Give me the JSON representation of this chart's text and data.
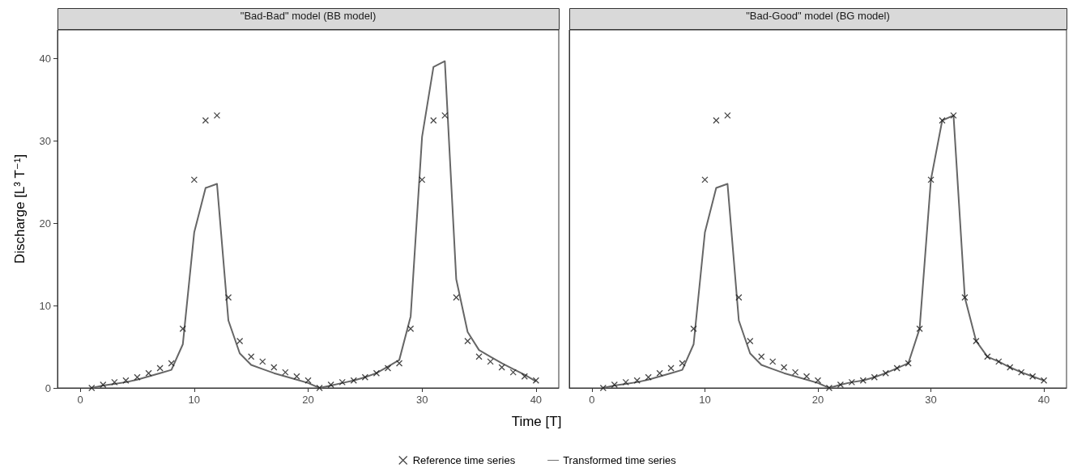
{
  "chart_data": [
    {
      "type": "line",
      "title": "\"Bad-Bad\" model (BB model)",
      "xlabel": "Time [T]",
      "ylabel": "Discharge [L³ T⁻¹]",
      "x": [
        1,
        2,
        3,
        4,
        5,
        6,
        7,
        8,
        9,
        10,
        11,
        12,
        13,
        14,
        15,
        16,
        17,
        18,
        19,
        20,
        21,
        22,
        23,
        24,
        25,
        26,
        27,
        28,
        29,
        30,
        31,
        32,
        33,
        34,
        35,
        36,
        37,
        38,
        39,
        40
      ],
      "series": [
        {
          "name": "Reference time series",
          "type": "scatter",
          "marker": "cross",
          "color": "#1a1a1a",
          "values": [
            0,
            0.4,
            0.7,
            0.9,
            1.3,
            1.8,
            2.4,
            3.0,
            7.2,
            25.3,
            32.5,
            33.1,
            11.0,
            5.7,
            3.8,
            3.2,
            2.5,
            1.9,
            1.4,
            0.9,
            0,
            0.4,
            0.7,
            0.9,
            1.3,
            1.8,
            2.4,
            3.0,
            7.2,
            25.3,
            32.5,
            33.1,
            11.0,
            5.7,
            3.8,
            3.2,
            2.5,
            1.9,
            1.4,
            0.9
          ]
        },
        {
          "name": "Transformed time series",
          "type": "line",
          "color": "#666666",
          "values": [
            0,
            0.3,
            0.5,
            0.7,
            1.0,
            1.4,
            1.8,
            2.2,
            5.3,
            18.9,
            24.3,
            24.8,
            8.2,
            4.2,
            2.8,
            2.3,
            1.8,
            1.4,
            1.0,
            0.6,
            0,
            0.3,
            0.6,
            0.9,
            1.3,
            1.8,
            2.6,
            3.4,
            8.7,
            30.5,
            39.0,
            39.7,
            13.2,
            6.8,
            4.6,
            3.8,
            3.0,
            2.3,
            1.6,
            0.8
          ]
        }
      ],
      "xlim": [
        -2,
        42
      ],
      "xticks": [
        0,
        10,
        20,
        30,
        40
      ],
      "ylim": [
        0,
        43.5
      ],
      "yticks": [
        0,
        10,
        20,
        30,
        40
      ],
      "grid": false,
      "legend": "bottom"
    },
    {
      "type": "line",
      "title": "\"Bad-Good\" model (BG model)",
      "x": [
        1,
        2,
        3,
        4,
        5,
        6,
        7,
        8,
        9,
        10,
        11,
        12,
        13,
        14,
        15,
        16,
        17,
        18,
        19,
        20,
        21,
        22,
        23,
        24,
        25,
        26,
        27,
        28,
        29,
        30,
        31,
        32,
        33,
        34,
        35,
        36,
        37,
        38,
        39,
        40
      ],
      "series": [
        {
          "type": "scatter",
          "marker": "cross",
          "color": "#1a1a1a",
          "values": [
            0,
            0.4,
            0.7,
            0.9,
            1.3,
            1.8,
            2.4,
            3.0,
            7.2,
            25.3,
            32.5,
            33.1,
            11.0,
            5.7,
            3.8,
            3.2,
            2.5,
            1.9,
            1.4,
            0.9,
            0,
            0.4,
            0.7,
            0.9,
            1.3,
            1.8,
            2.4,
            3.0,
            7.2,
            25.3,
            32.5,
            33.1,
            11.0,
            5.7,
            3.8,
            3.2,
            2.5,
            1.9,
            1.4,
            0.9
          ]
        },
        {
          "type": "line",
          "color": "#666666",
          "values": [
            0,
            0.3,
            0.5,
            0.7,
            1.0,
            1.4,
            1.8,
            2.2,
            5.3,
            18.9,
            24.3,
            24.8,
            8.2,
            4.2,
            2.8,
            2.3,
            1.8,
            1.4,
            1.0,
            0.6,
            0,
            0.4,
            0.7,
            0.9,
            1.3,
            1.8,
            2.4,
            3.0,
            7.2,
            25.3,
            32.5,
            33.1,
            11.0,
            5.7,
            3.8,
            3.2,
            2.5,
            1.9,
            1.4,
            0.9
          ]
        }
      ],
      "xlim": [
        -2,
        42
      ],
      "xticks": [
        0,
        10,
        20,
        30,
        40
      ],
      "ylim": [
        0,
        43.5
      ],
      "yticks": [
        0,
        10,
        20,
        30,
        40
      ],
      "grid": false,
      "legend": false,
      "tick_labels": "x"
    }
  ]
}
